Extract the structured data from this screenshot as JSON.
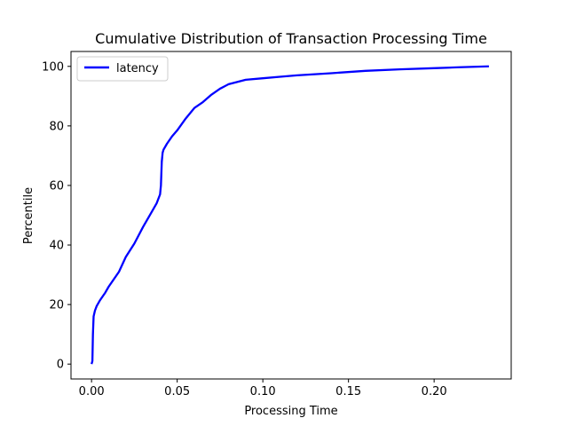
{
  "chart_data": {
    "type": "line",
    "title": "Cumulative Distribution of Transaction Processing Time",
    "xlabel": "Processing Time",
    "ylabel": "Percentile",
    "xlim": [
      -0.012,
      0.245
    ],
    "ylim": [
      -5,
      105
    ],
    "x_ticks": [
      0.0,
      0.05,
      0.1,
      0.15,
      0.2
    ],
    "x_tick_labels": [
      "0.00",
      "0.05",
      "0.10",
      "0.15",
      "0.20"
    ],
    "y_ticks": [
      0,
      20,
      40,
      60,
      80,
      100
    ],
    "y_tick_labels": [
      "0",
      "20",
      "40",
      "60",
      "80",
      "100"
    ],
    "grid": false,
    "legend": {
      "placement": "upper-left",
      "entries": [
        "latency"
      ]
    },
    "series": [
      {
        "name": "latency",
        "color": "#0000ff",
        "x": [
          0.0,
          0.0005,
          0.0008,
          0.0012,
          0.002,
          0.003,
          0.005,
          0.008,
          0.01,
          0.013,
          0.016,
          0.02,
          0.025,
          0.03,
          0.035,
          0.038,
          0.04,
          0.0405,
          0.041,
          0.0415,
          0.042,
          0.044,
          0.047,
          0.05,
          0.055,
          0.06,
          0.065,
          0.07,
          0.075,
          0.08,
          0.09,
          0.1,
          0.11,
          0.12,
          0.14,
          0.16,
          0.18,
          0.2,
          0.215,
          0.232
        ],
        "y": [
          0.0,
          1.0,
          10.0,
          16.0,
          18.0,
          19.5,
          21.5,
          24.0,
          26.0,
          28.5,
          31.0,
          36.0,
          40.5,
          46.0,
          51.0,
          54.0,
          57.0,
          60.0,
          68.0,
          71.0,
          72.0,
          74.0,
          76.5,
          78.5,
          82.5,
          86.0,
          88.0,
          90.5,
          92.5,
          94.0,
          95.5,
          96.0,
          96.5,
          97.0,
          97.7,
          98.5,
          99.0,
          99.4,
          99.7,
          100.0
        ]
      }
    ]
  }
}
